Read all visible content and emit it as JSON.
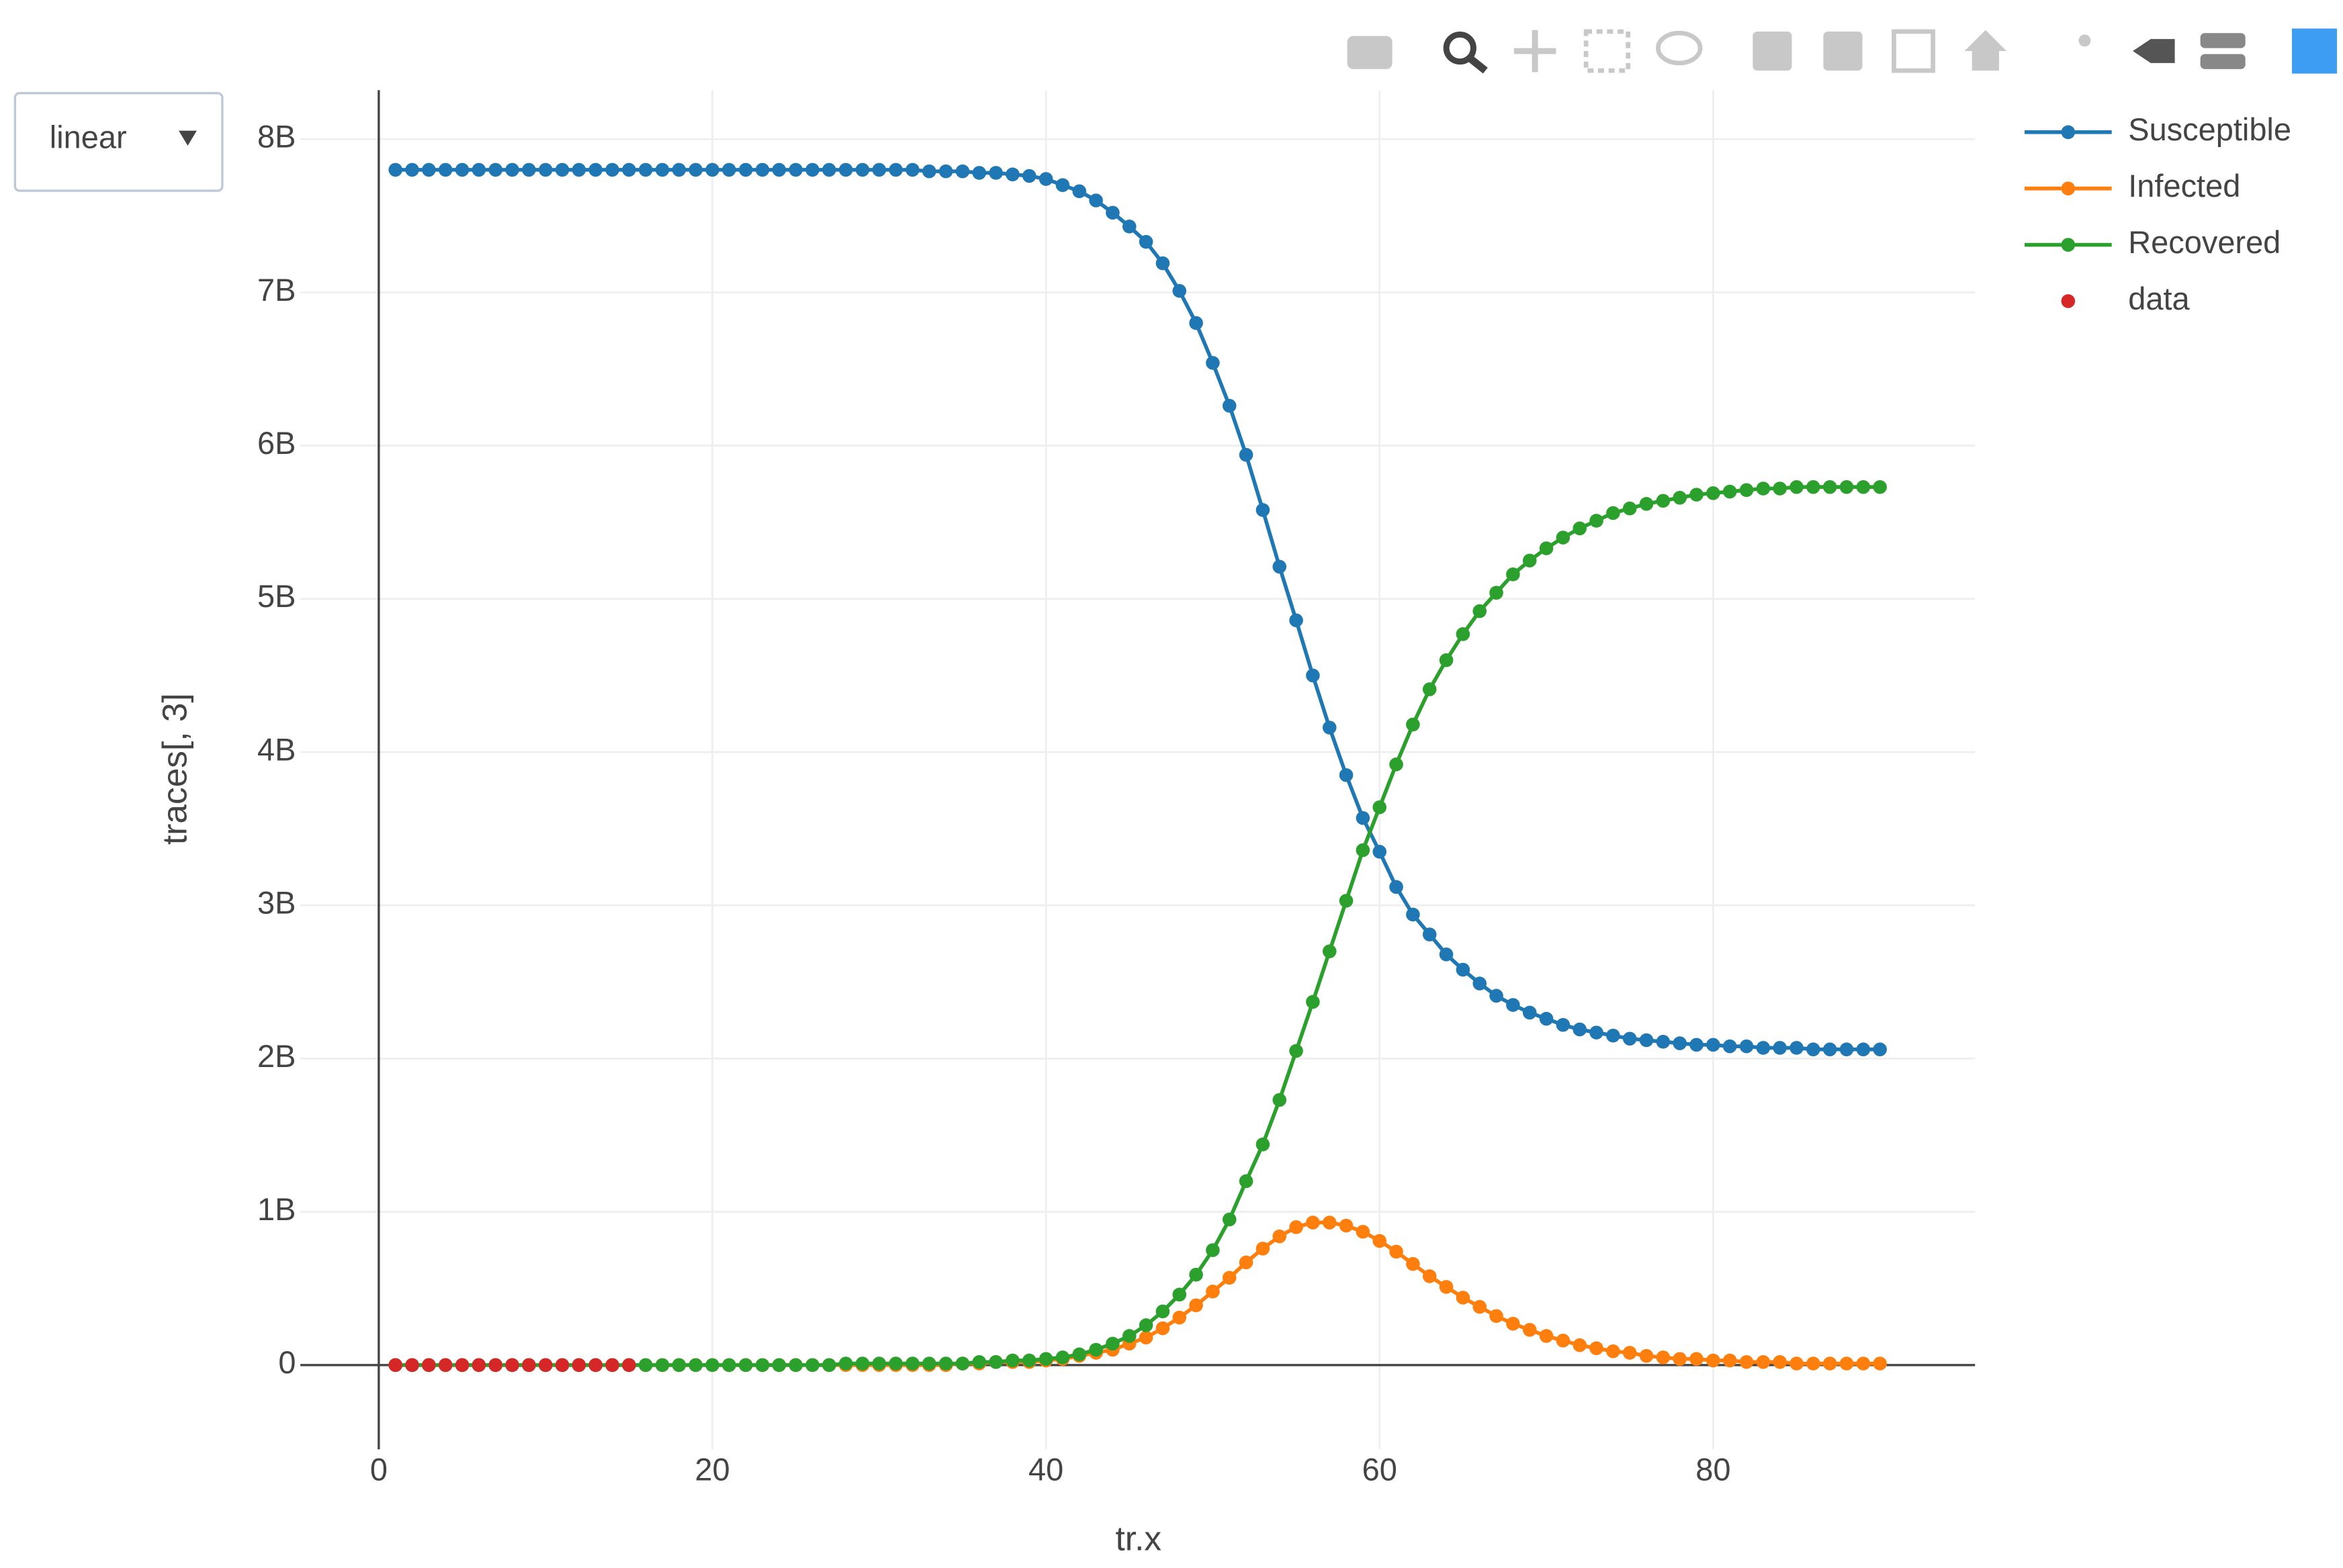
{
  "scale_menu": "linear",
  "chart_data": {
    "type": "line",
    "x_label": "tr.x",
    "y_label": "traces[, 3]",
    "x": [
      1,
      2,
      3,
      4,
      5,
      6,
      7,
      8,
      9,
      10,
      11,
      12,
      13,
      14,
      15,
      16,
      17,
      18,
      19,
      20,
      21,
      22,
      23,
      24,
      25,
      26,
      27,
      28,
      29,
      30,
      31,
      32,
      33,
      34,
      35,
      36,
      37,
      38,
      39,
      40,
      41,
      42,
      43,
      44,
      45,
      46,
      47,
      48,
      49,
      50,
      51,
      52,
      53,
      54,
      55,
      56,
      57,
      58,
      59,
      60,
      61,
      62,
      63,
      64,
      65,
      66,
      67,
      68,
      69,
      70,
      71,
      72,
      73,
      74,
      75,
      76,
      77,
      78,
      79,
      80,
      81,
      82,
      83,
      84,
      85,
      86,
      87,
      88,
      89,
      90
    ],
    "xlim": [
      -4.7,
      95.7
    ],
    "xticks": [
      0,
      20,
      40,
      60,
      80
    ],
    "ylim": [
      -550000000.0,
      8320000000.0
    ],
    "yticks": [
      0,
      {
        "value": 1000000000.0,
        "label": "1B"
      },
      {
        "value": 2000000000.0,
        "label": "2B"
      },
      {
        "value": 3000000000.0,
        "label": "3B"
      },
      {
        "value": 4000000000.0,
        "label": "4B"
      },
      {
        "value": 5000000000.0,
        "label": "5B"
      },
      {
        "value": 6000000000.0,
        "label": "6B"
      },
      {
        "value": 7000000000.0,
        "label": "7B"
      },
      {
        "value": 8000000000.0,
        "label": "8B"
      }
    ],
    "grid": true,
    "legend": "top-right",
    "series": [
      {
        "name": "Susceptible",
        "color": "#1f77b4",
        "mode": "lines+markers",
        "values": [
          7800000000.0,
          7800000000.0,
          7800000000.0,
          7800000000.0,
          7800000000.0,
          7800000000.0,
          7800000000.0,
          7800000000.0,
          7800000000.0,
          7800000000.0,
          7800000000.0,
          7800000000.0,
          7800000000.0,
          7800000000.0,
          7800000000.0,
          7800000000.0,
          7800000000.0,
          7800000000.0,
          7800000000.0,
          7800000000.0,
          7800000000.0,
          7800000000.0,
          7800000000.0,
          7800000000.0,
          7800000000.0,
          7800000000.0,
          7800000000.0,
          7800000000.0,
          7800000000.0,
          7800000000.0,
          7800000000.0,
          7800000000.0,
          7790000000.0,
          7790000000.0,
          7790000000.0,
          7780000000.0,
          7780000000.0,
          7770000000.0,
          7760000000.0,
          7740000000.0,
          7700000000.0,
          7660000000.0,
          7600000000.0,
          7520000000.0,
          7430000000.0,
          7330000000.0,
          7190000000.0,
          7010000000.0,
          6800000000.0,
          6540000000.0,
          6260000000.0,
          5940000000.0,
          5580000000.0,
          5210000000.0,
          4860000000.0,
          4500000000.0,
          4160000000.0,
          3850000000.0,
          3570000000.0,
          3350000000.0,
          3120000000.0,
          2940000000.0,
          2810000000.0,
          2680000000.0,
          2580000000.0,
          2490000000.0,
          2410000000.0,
          2350000000.0,
          2300000000.0,
          2260000000.0,
          2220000000.0,
          2190000000.0,
          2170000000.0,
          2150000000.0,
          2130000000.0,
          2120000000.0,
          2110000000.0,
          2100000000.0,
          2090000000.0,
          2090000000.0,
          2080000000.0,
          2080000000.0,
          2070000000.0,
          2070000000.0,
          2070000000.0,
          2060000000.0,
          2060000000.0,
          2060000000.0,
          2060000000.0,
          2060000000.0
        ]
      },
      {
        "name": "Infected",
        "color": "#ff7f0e",
        "mode": "lines+markers",
        "values": [
          0,
          0,
          0,
          0,
          0,
          0,
          0,
          0,
          0,
          0,
          0,
          0,
          0,
          0,
          0,
          0,
          0,
          0,
          0,
          0,
          0,
          0,
          0,
          0,
          0,
          0,
          0,
          0,
          0,
          0,
          0,
          0,
          0,
          0,
          10000000.0,
          10000000.0,
          20000000.0,
          20000000.0,
          20000000.0,
          30000000.0,
          40000000.0,
          60000000.0,
          80000000.0,
          100000000.0,
          140000000.0,
          180000000.0,
          240000000.0,
          310000000.0,
          390000000.0,
          480000000.0,
          570000000.0,
          670000000.0,
          760000000.0,
          840000000.0,
          900000000.0,
          930000000.0,
          930000000.0,
          910000000.0,
          870000000.0,
          810000000.0,
          740000000.0,
          660000000.0,
          580000000.0,
          510000000.0,
          440000000.0,
          380000000.0,
          320000000.0,
          270000000.0,
          230000000.0,
          190000000.0,
          160000000.0,
          130000000.0,
          110000000.0,
          90000000.0,
          80000000.0,
          60000000.0,
          50000000.0,
          40000000.0,
          40000000.0,
          30000000.0,
          30000000.0,
          20000000.0,
          20000000.0,
          20000000.0,
          10000000.0,
          10000000.0,
          10000000.0,
          10000000.0,
          10000000.0,
          10000000.0
        ]
      },
      {
        "name": "Recovered",
        "color": "#2ca02c",
        "mode": "lines+markers",
        "values": [
          0,
          0,
          0,
          0,
          0,
          0,
          0,
          0,
          0,
          0,
          0,
          0,
          0,
          0,
          0,
          0,
          0,
          0,
          0,
          0,
          0,
          0,
          0,
          0,
          0,
          0,
          0,
          10000000.0,
          10000000.0,
          10000000.0,
          10000000.0,
          10000000.0,
          10000000.0,
          10000000.0,
          10000000.0,
          20000000.0,
          20000000.0,
          30000000.0,
          30000000.0,
          40000000.0,
          50000000.0,
          70000000.0,
          100000000.0,
          140000000.0,
          190000000.0,
          260000000.0,
          350000000.0,
          460000000.0,
          590000000.0,
          750000000.0,
          950000000.0,
          1200000000.0,
          1440000000.0,
          1730000000.0,
          2050000000.0,
          2370000000.0,
          2700000000.0,
          3030000000.0,
          3360000000.0,
          3640000000.0,
          3920000000.0,
          4180000000.0,
          4410000000.0,
          4600000000.0,
          4770000000.0,
          4920000000.0,
          5040000000.0,
          5160000000.0,
          5250000000.0,
          5330000000.0,
          5400000000.0,
          5460000000.0,
          5510000000.0,
          5560000000.0,
          5590000000.0,
          5620000000.0,
          5640000000.0,
          5660000000.0,
          5680000000.0,
          5690000000.0,
          5700000000.0,
          5710000000.0,
          5720000000.0,
          5720000000.0,
          5730000000.0,
          5730000000.0,
          5730000000.0,
          5730000000.0,
          5730000000.0,
          5730000000.0
        ]
      },
      {
        "name": "data",
        "color": "#d62728",
        "mode": "markers",
        "x": [
          1,
          2,
          3,
          4,
          5,
          6,
          7,
          8,
          9,
          10,
          11,
          12,
          13,
          14,
          15
        ],
        "values": [
          0,
          0,
          0,
          0,
          0,
          0,
          0,
          0,
          0,
          0,
          0,
          0,
          0,
          0,
          0
        ]
      }
    ]
  }
}
